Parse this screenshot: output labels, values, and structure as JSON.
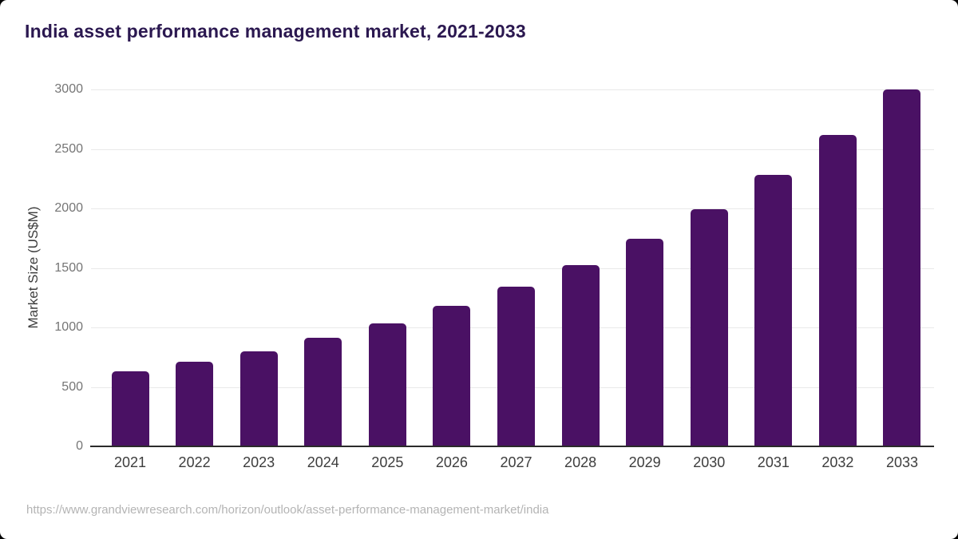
{
  "page": {
    "source_url": "https://www.grandviewresearch.com/horizon/outlook/asset-performance-management-market/india"
  },
  "colors": {
    "bar": "#4a1164",
    "title": "#2b1850",
    "axis_line": "#2b2b2b",
    "gridline": "#e9e9e9",
    "y_tick_label": "#757575",
    "x_tick_label": "#3d3d3d",
    "y_axis_title": "#3d3d3d",
    "footer_text": "#b4b4b4",
    "card_background": "#ffffff"
  },
  "chart_data": {
    "type": "bar",
    "title": "India asset performance management market, 2021-2033",
    "categories": [
      "2021",
      "2022",
      "2023",
      "2024",
      "2025",
      "2026",
      "2027",
      "2028",
      "2029",
      "2030",
      "2031",
      "2032",
      "2033"
    ],
    "values": [
      630,
      710,
      800,
      910,
      1035,
      1180,
      1340,
      1525,
      1745,
      1995,
      2280,
      2620,
      3000
    ],
    "xlabel": "",
    "ylabel": "Market Size (US$M)",
    "ylim": [
      0,
      3000
    ],
    "yticks": [
      0,
      500,
      1000,
      1500,
      2000,
      2500,
      3000
    ],
    "grid": true,
    "legend": false
  }
}
